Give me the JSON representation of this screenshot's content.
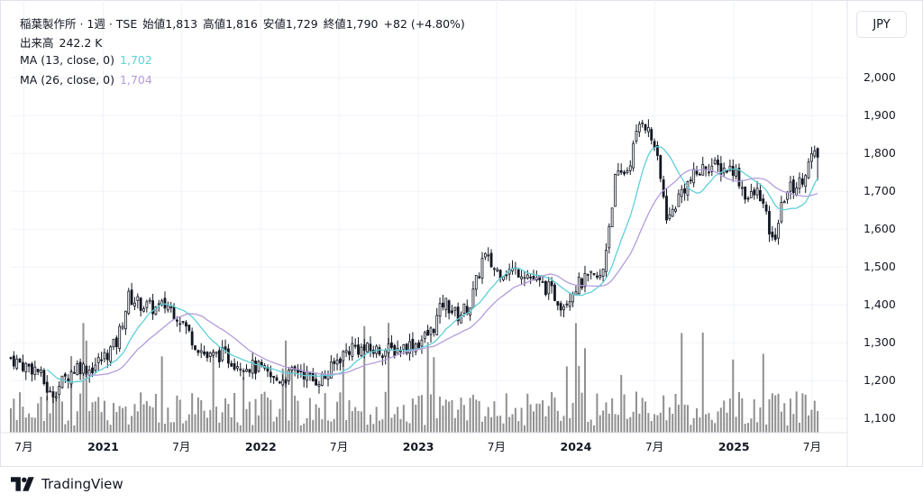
{
  "header": {
    "title": "稲葉製作所 · 1週 · TSE",
    "open_label": "始値",
    "open": "1,813",
    "high_label": "高値",
    "high": "1,816",
    "low_label": "安値",
    "low": "1,729",
    "close_label": "終値",
    "close": "1,790",
    "change": "+82 (+4.80%)"
  },
  "volume_row": {
    "label": "出来高",
    "value": "242.2 K"
  },
  "ma_rows": [
    {
      "label": "MA (13, close, 0)",
      "value": "1,702",
      "color": "#5fd0d8"
    },
    {
      "label": "MA (26, close, 0)",
      "value": "1,704",
      "color": "#b39ddb"
    }
  ],
  "currency_button": "JPY",
  "brand": "TradingView",
  "colors": {
    "candle": "#131722",
    "volume": "#909090",
    "grid": "#f0f3fa"
  },
  "chart_data": {
    "type": "candlestick",
    "interval": "1週",
    "ylim": [
      1040,
      2040
    ],
    "y_ticks": [
      1100,
      1200,
      1300,
      1400,
      1500,
      1600,
      1700,
      1800,
      1900,
      2000
    ],
    "y_tick_labels": [
      "1,100",
      "1,200",
      "1,300",
      "1,400",
      "1,500",
      "1,600",
      "1,700",
      "1,800",
      "1,900",
      "2,000"
    ],
    "x_ticks": [
      {
        "label": "7月",
        "date": "2020-07",
        "bold": false
      },
      {
        "label": "2021",
        "date": "2021-01",
        "bold": true
      },
      {
        "label": "7月",
        "date": "2021-07",
        "bold": false
      },
      {
        "label": "2022",
        "date": "2022-01",
        "bold": true
      },
      {
        "label": "7月",
        "date": "2022-07",
        "bold": false
      },
      {
        "label": "2023",
        "date": "2023-01",
        "bold": true
      },
      {
        "label": "7月",
        "date": "2023-07",
        "bold": false
      },
      {
        "label": "2024",
        "date": "2024-01",
        "bold": true
      },
      {
        "label": "7月",
        "date": "2024-07",
        "bold": false
      },
      {
        "label": "2025",
        "date": "2025-01",
        "bold": true
      },
      {
        "label": "7月",
        "date": "2025-07",
        "bold": false
      }
    ],
    "anchor_prices": [
      [
        "2020-06",
        1260
      ],
      [
        "2020-07",
        1240
      ],
      [
        "2020-08",
        1230
      ],
      [
        "2020-09",
        1160
      ],
      [
        "2020-10",
        1200
      ],
      [
        "2020-11",
        1240
      ],
      [
        "2020-12",
        1230
      ],
      [
        "2021-01",
        1260
      ],
      [
        "2021-02",
        1300
      ],
      [
        "2021-03",
        1420
      ],
      [
        "2021-04",
        1400
      ],
      [
        "2021-05",
        1390
      ],
      [
        "2021-06",
        1400
      ],
      [
        "2021-07",
        1360
      ],
      [
        "2021-08",
        1300
      ],
      [
        "2021-09",
        1260
      ],
      [
        "2021-10",
        1270
      ],
      [
        "2021-11",
        1250
      ],
      [
        "2021-12",
        1240
      ],
      [
        "2022-01",
        1230
      ],
      [
        "2022-02",
        1200
      ],
      [
        "2022-03",
        1210
      ],
      [
        "2022-04",
        1230
      ],
      [
        "2022-05",
        1200
      ],
      [
        "2022-06",
        1210
      ],
      [
        "2022-07",
        1260
      ],
      [
        "2022-08",
        1290
      ],
      [
        "2022-09",
        1280
      ],
      [
        "2022-10",
        1280
      ],
      [
        "2022-11",
        1280
      ],
      [
        "2022-12",
        1290
      ],
      [
        "2023-01",
        1300
      ],
      [
        "2023-02",
        1330
      ],
      [
        "2023-03",
        1410
      ],
      [
        "2023-04",
        1370
      ],
      [
        "2023-05",
        1400
      ],
      [
        "2023-06",
        1530
      ],
      [
        "2023-07",
        1490
      ],
      [
        "2023-08",
        1490
      ],
      [
        "2023-09",
        1490
      ],
      [
        "2023-10",
        1460
      ],
      [
        "2023-11",
        1440
      ],
      [
        "2023-12",
        1400
      ],
      [
        "2024-01",
        1450
      ],
      [
        "2024-02",
        1470
      ],
      [
        "2024-03",
        1470
      ],
      [
        "2024-04",
        1730
      ],
      [
        "2024-05",
        1760
      ],
      [
        "2024-06",
        1900
      ],
      [
        "2024-07",
        1820
      ],
      [
        "2024-08",
        1620
      ],
      [
        "2024-09",
        1700
      ],
      [
        "2024-10",
        1740
      ],
      [
        "2024-11",
        1770
      ],
      [
        "2024-12",
        1760
      ],
      [
        "2025-01",
        1760
      ],
      [
        "2025-02",
        1680
      ],
      [
        "2025-03",
        1700
      ],
      [
        "2025-04",
        1560
      ],
      [
        "2025-05",
        1700
      ],
      [
        "2025-06",
        1720
      ],
      [
        "2025-07",
        1790
      ]
    ],
    "last_bar": {
      "open": 1813,
      "high": 1816,
      "low": 1729,
      "close": 1790,
      "volume": "242.2K"
    }
  }
}
